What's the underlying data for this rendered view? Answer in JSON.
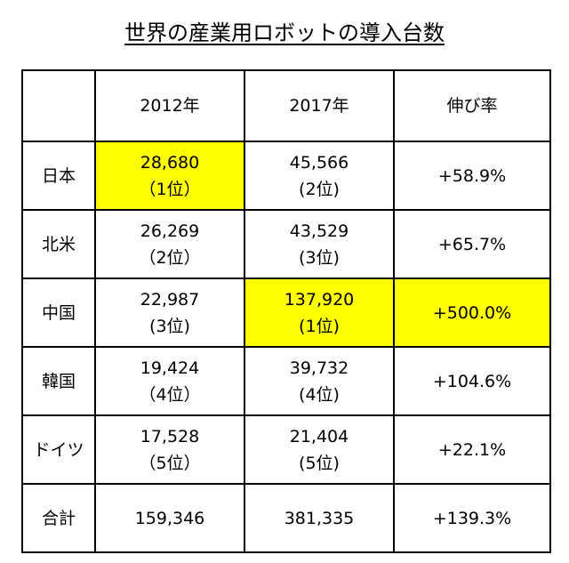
{
  "title": "世界の産業用ロボットの導入台数",
  "highlight_color": "#ffff00",
  "columns": [
    "",
    "2012年",
    "2017年",
    "伸び率"
  ],
  "rows": [
    {
      "name": "日本",
      "y2012": {
        "value": "28,680",
        "rank": "（1位）",
        "highlight": true
      },
      "y2017": {
        "value": "45,566",
        "rank": "(2位)",
        "highlight": false
      },
      "growth": {
        "value": "+58.9%",
        "highlight": false
      }
    },
    {
      "name": "北米",
      "y2012": {
        "value": "26,269",
        "rank": "（2位）",
        "highlight": false
      },
      "y2017": {
        "value": "43,529",
        "rank": "(3位)",
        "highlight": false
      },
      "growth": {
        "value": "+65.7%",
        "highlight": false
      }
    },
    {
      "name": "中国",
      "y2012": {
        "value": "22,987",
        "rank": "(3位)",
        "highlight": false
      },
      "y2017": {
        "value": "137,920",
        "rank": "(1位)",
        "highlight": true
      },
      "growth": {
        "value": "+500.0%",
        "highlight": true
      }
    },
    {
      "name": "韓国",
      "y2012": {
        "value": "19,424",
        "rank": "（4位）",
        "highlight": false
      },
      "y2017": {
        "value": "39,732",
        "rank": "(4位)",
        "highlight": false
      },
      "growth": {
        "value": "+104.6%",
        "highlight": false
      }
    },
    {
      "name": "ドイツ",
      "y2012": {
        "value": "17,528",
        "rank": "（5位）",
        "highlight": false
      },
      "y2017": {
        "value": "21,404",
        "rank": "(5位)",
        "highlight": false
      },
      "growth": {
        "value": "+22.1%",
        "highlight": false
      }
    }
  ],
  "total": {
    "name": "合計",
    "y2012": "159,346",
    "y2017": "381,335",
    "growth": "+139.3%"
  }
}
